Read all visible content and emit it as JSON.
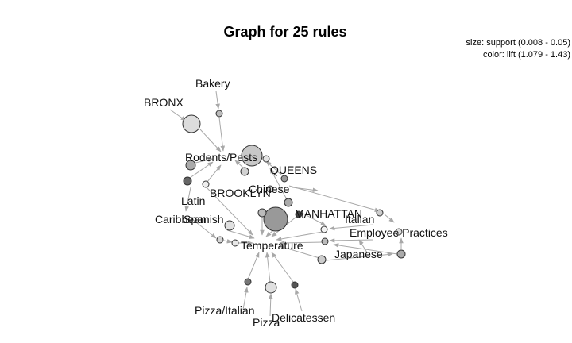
{
  "title": "Graph for 25 rules",
  "legend": {
    "size": "size: support (0.008 - 0.05)",
    "color": "color: lift (1.079 - 1.43)"
  },
  "colors": {
    "edge": "#a8a8a8",
    "node_low_lift": "#eeeeee",
    "node_high_lift": "#444444"
  },
  "items": [
    "Bakery",
    "BRONX",
    "Rodents/Pests",
    "QUEENS",
    "Chinese",
    "BROOKLYN",
    "Latin",
    "Caribbean",
    "Spanish",
    "MANHATTAN",
    "Italian",
    "Employee Practices",
    "Temperature",
    "Japanese",
    "Pizza/Italian",
    "Pizza",
    "Delicatessen"
  ],
  "rule_count": 25
}
